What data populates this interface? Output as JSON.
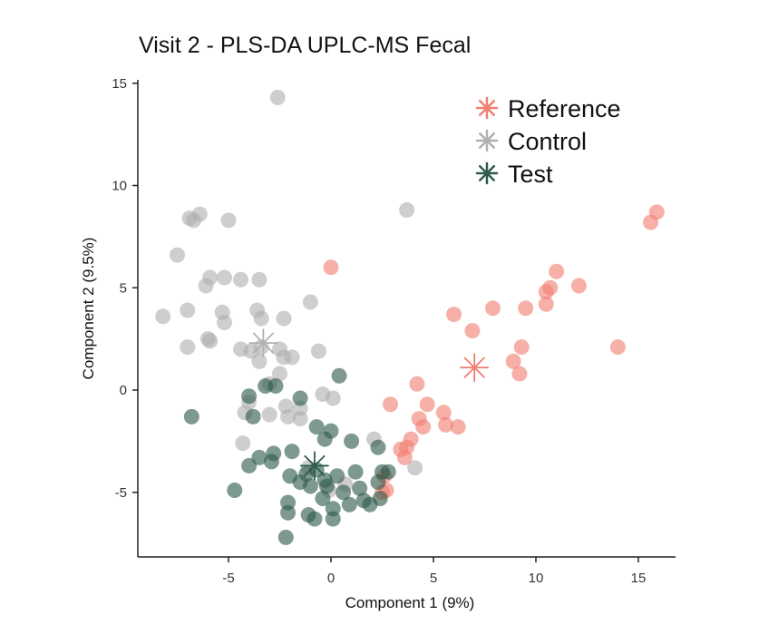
{
  "chart_data": {
    "type": "scatter",
    "title": "Visit 2 - PLS-DA UPLC-MS Fecal",
    "xlabel": "Component 1 (9%)",
    "ylabel": "Component 2 (9.5%)",
    "xlim": [
      -9.5,
      17
    ],
    "ylim": [
      -8,
      15.5
    ],
    "xticks": [
      -5,
      0,
      5,
      10,
      15
    ],
    "yticks": [
      -5,
      0,
      5,
      10,
      15
    ],
    "grid": false,
    "legend_position": "top-right",
    "series": [
      {
        "name": "Reference",
        "color": "#f07f72",
        "centroid": [
          7.0,
          1.1
        ],
        "points": [
          [
            0.0,
            6.0
          ],
          [
            15.9,
            8.7
          ],
          [
            15.6,
            8.2
          ],
          [
            11.0,
            5.8
          ],
          [
            12.1,
            5.1
          ],
          [
            10.7,
            5.0
          ],
          [
            10.5,
            4.8
          ],
          [
            10.5,
            4.2
          ],
          [
            7.9,
            4.0
          ],
          [
            9.5,
            4.0
          ],
          [
            6.0,
            3.7
          ],
          [
            6.9,
            2.9
          ],
          [
            14.0,
            2.1
          ],
          [
            9.3,
            2.1
          ],
          [
            8.9,
            1.4
          ],
          [
            9.2,
            0.8
          ],
          [
            4.2,
            0.3
          ],
          [
            2.9,
            -0.7
          ],
          [
            4.7,
            -0.7
          ],
          [
            5.5,
            -1.1
          ],
          [
            4.3,
            -1.4
          ],
          [
            5.6,
            -1.7
          ],
          [
            6.2,
            -1.8
          ],
          [
            4.5,
            -1.8
          ],
          [
            3.9,
            -2.4
          ],
          [
            3.7,
            -2.8
          ],
          [
            3.4,
            -2.9
          ],
          [
            3.6,
            -3.3
          ],
          [
            2.6,
            -4.2
          ],
          [
            2.7,
            -4.9
          ],
          [
            2.5,
            -5.0
          ]
        ]
      },
      {
        "name": "Control",
        "color": "#b0b0b0",
        "centroid": [
          -3.3,
          2.3
        ],
        "points": [
          [
            -2.6,
            14.3
          ],
          [
            3.7,
            8.8
          ],
          [
            -6.9,
            8.4
          ],
          [
            -6.4,
            8.6
          ],
          [
            -6.7,
            8.3
          ],
          [
            -5.0,
            8.3
          ],
          [
            -7.5,
            6.6
          ],
          [
            -5.9,
            5.5
          ],
          [
            -5.2,
            5.5
          ],
          [
            -4.4,
            5.4
          ],
          [
            -3.5,
            5.4
          ],
          [
            -6.1,
            5.1
          ],
          [
            -1.0,
            4.3
          ],
          [
            -8.2,
            3.6
          ],
          [
            -7.0,
            3.9
          ],
          [
            -5.3,
            3.8
          ],
          [
            -3.6,
            3.9
          ],
          [
            -2.3,
            3.5
          ],
          [
            -5.2,
            3.3
          ],
          [
            -3.4,
            3.5
          ],
          [
            -6.0,
            2.5
          ],
          [
            -5.9,
            2.4
          ],
          [
            -7.0,
            2.1
          ],
          [
            -4.4,
            2.0
          ],
          [
            -3.9,
            1.9
          ],
          [
            -3.4,
            2.1
          ],
          [
            -2.5,
            2.0
          ],
          [
            -2.3,
            1.6
          ],
          [
            -1.9,
            1.6
          ],
          [
            -0.6,
            1.9
          ],
          [
            -3.5,
            1.4
          ],
          [
            -2.5,
            0.8
          ],
          [
            -3.0,
            0.3
          ],
          [
            -4.0,
            -0.6
          ],
          [
            -2.2,
            -0.8
          ],
          [
            -1.5,
            -0.9
          ],
          [
            -0.4,
            -0.2
          ],
          [
            0.1,
            -0.4
          ],
          [
            -4.2,
            -1.1
          ],
          [
            -3.0,
            -1.2
          ],
          [
            -2.1,
            -1.3
          ],
          [
            -1.5,
            -1.4
          ],
          [
            -4.3,
            -2.6
          ],
          [
            2.1,
            -2.4
          ],
          [
            4.1,
            -3.8
          ],
          [
            -1.1,
            -3.8
          ],
          [
            -0.1,
            -4.9
          ],
          [
            0.7,
            -4.6
          ]
        ]
      },
      {
        "name": "Test",
        "color": "#2f5a4c",
        "centroid": [
          -0.8,
          -3.7
        ],
        "points": [
          [
            -6.8,
            -1.3
          ],
          [
            0.4,
            0.7
          ],
          [
            -3.2,
            0.2
          ],
          [
            -2.7,
            0.2
          ],
          [
            -1.5,
            -0.4
          ],
          [
            -4.0,
            -0.3
          ],
          [
            -3.8,
            -1.3
          ],
          [
            -0.7,
            -1.8
          ],
          [
            0.0,
            -2.0
          ],
          [
            -0.3,
            -2.4
          ],
          [
            1.0,
            -2.5
          ],
          [
            2.3,
            -2.8
          ],
          [
            -3.5,
            -3.3
          ],
          [
            -2.8,
            -3.1
          ],
          [
            -1.9,
            -3.0
          ],
          [
            -2.9,
            -3.5
          ],
          [
            -4.0,
            -3.7
          ],
          [
            -0.7,
            -3.9
          ],
          [
            -1.2,
            -4.1
          ],
          [
            -2.0,
            -4.2
          ],
          [
            -1.5,
            -4.5
          ],
          [
            -0.3,
            -4.4
          ],
          [
            0.3,
            -4.2
          ],
          [
            1.2,
            -4.0
          ],
          [
            2.5,
            -4.0
          ],
          [
            2.8,
            -4.0
          ],
          [
            -1.0,
            -4.7
          ],
          [
            -0.2,
            -4.7
          ],
          [
            1.4,
            -4.8
          ],
          [
            2.3,
            -4.5
          ],
          [
            -4.7,
            -4.9
          ],
          [
            -0.4,
            -5.3
          ],
          [
            0.6,
            -5.0
          ],
          [
            1.6,
            -5.4
          ],
          [
            2.4,
            -5.3
          ],
          [
            -2.1,
            -5.5
          ],
          [
            0.1,
            -5.8
          ],
          [
            0.9,
            -5.6
          ],
          [
            1.9,
            -5.6
          ],
          [
            -1.1,
            -6.1
          ],
          [
            -2.1,
            -6.0
          ],
          [
            -0.8,
            -6.3
          ],
          [
            0.1,
            -6.3
          ],
          [
            -2.2,
            -7.2
          ]
        ]
      }
    ]
  }
}
